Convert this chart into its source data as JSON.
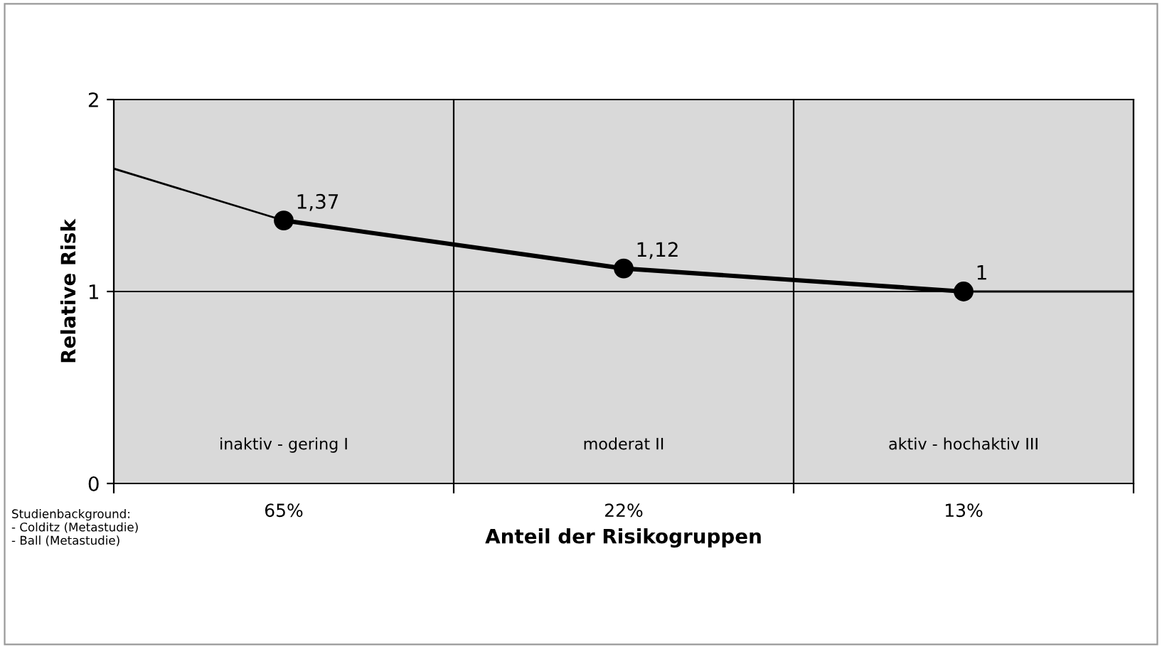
{
  "chart_data": {
    "type": "line",
    "xlabel": "Anteil der Risikogruppen",
    "ylabel": "Relative Risk",
    "categories": [
      null,
      "65%",
      null,
      "22%",
      null,
      "13%",
      null
    ],
    "ylim": [
      0,
      2
    ],
    "yticks": [
      0,
      1,
      2
    ],
    "ref_lines": [
      {
        "axis": "y",
        "value": 1,
        "color": "#000000"
      }
    ],
    "legend": false,
    "series": [
      {
        "color": "#000000",
        "values": [
          null,
          1.37,
          null,
          1.12,
          null,
          1,
          null
        ],
        "marker": "circle",
        "value_labels": [
          null,
          "1,37",
          null,
          "1,12",
          null,
          "1",
          null
        ]
      },
      {
        "color": "#000000",
        "values": [
          1.64,
          1.37,
          null,
          null,
          null,
          null,
          null
        ]
      },
      {
        "color": "#000000",
        "values": [
          null,
          null,
          null,
          null,
          null,
          1,
          1
        ]
      }
    ],
    "annotations": [
      "inaktiv - gering I",
      "moderat II",
      "aktiv - hochaktiv III",
      "Studienbackground:\n- Colditz (Metastudie)\n- Ball (Metastudie)"
    ]
  }
}
